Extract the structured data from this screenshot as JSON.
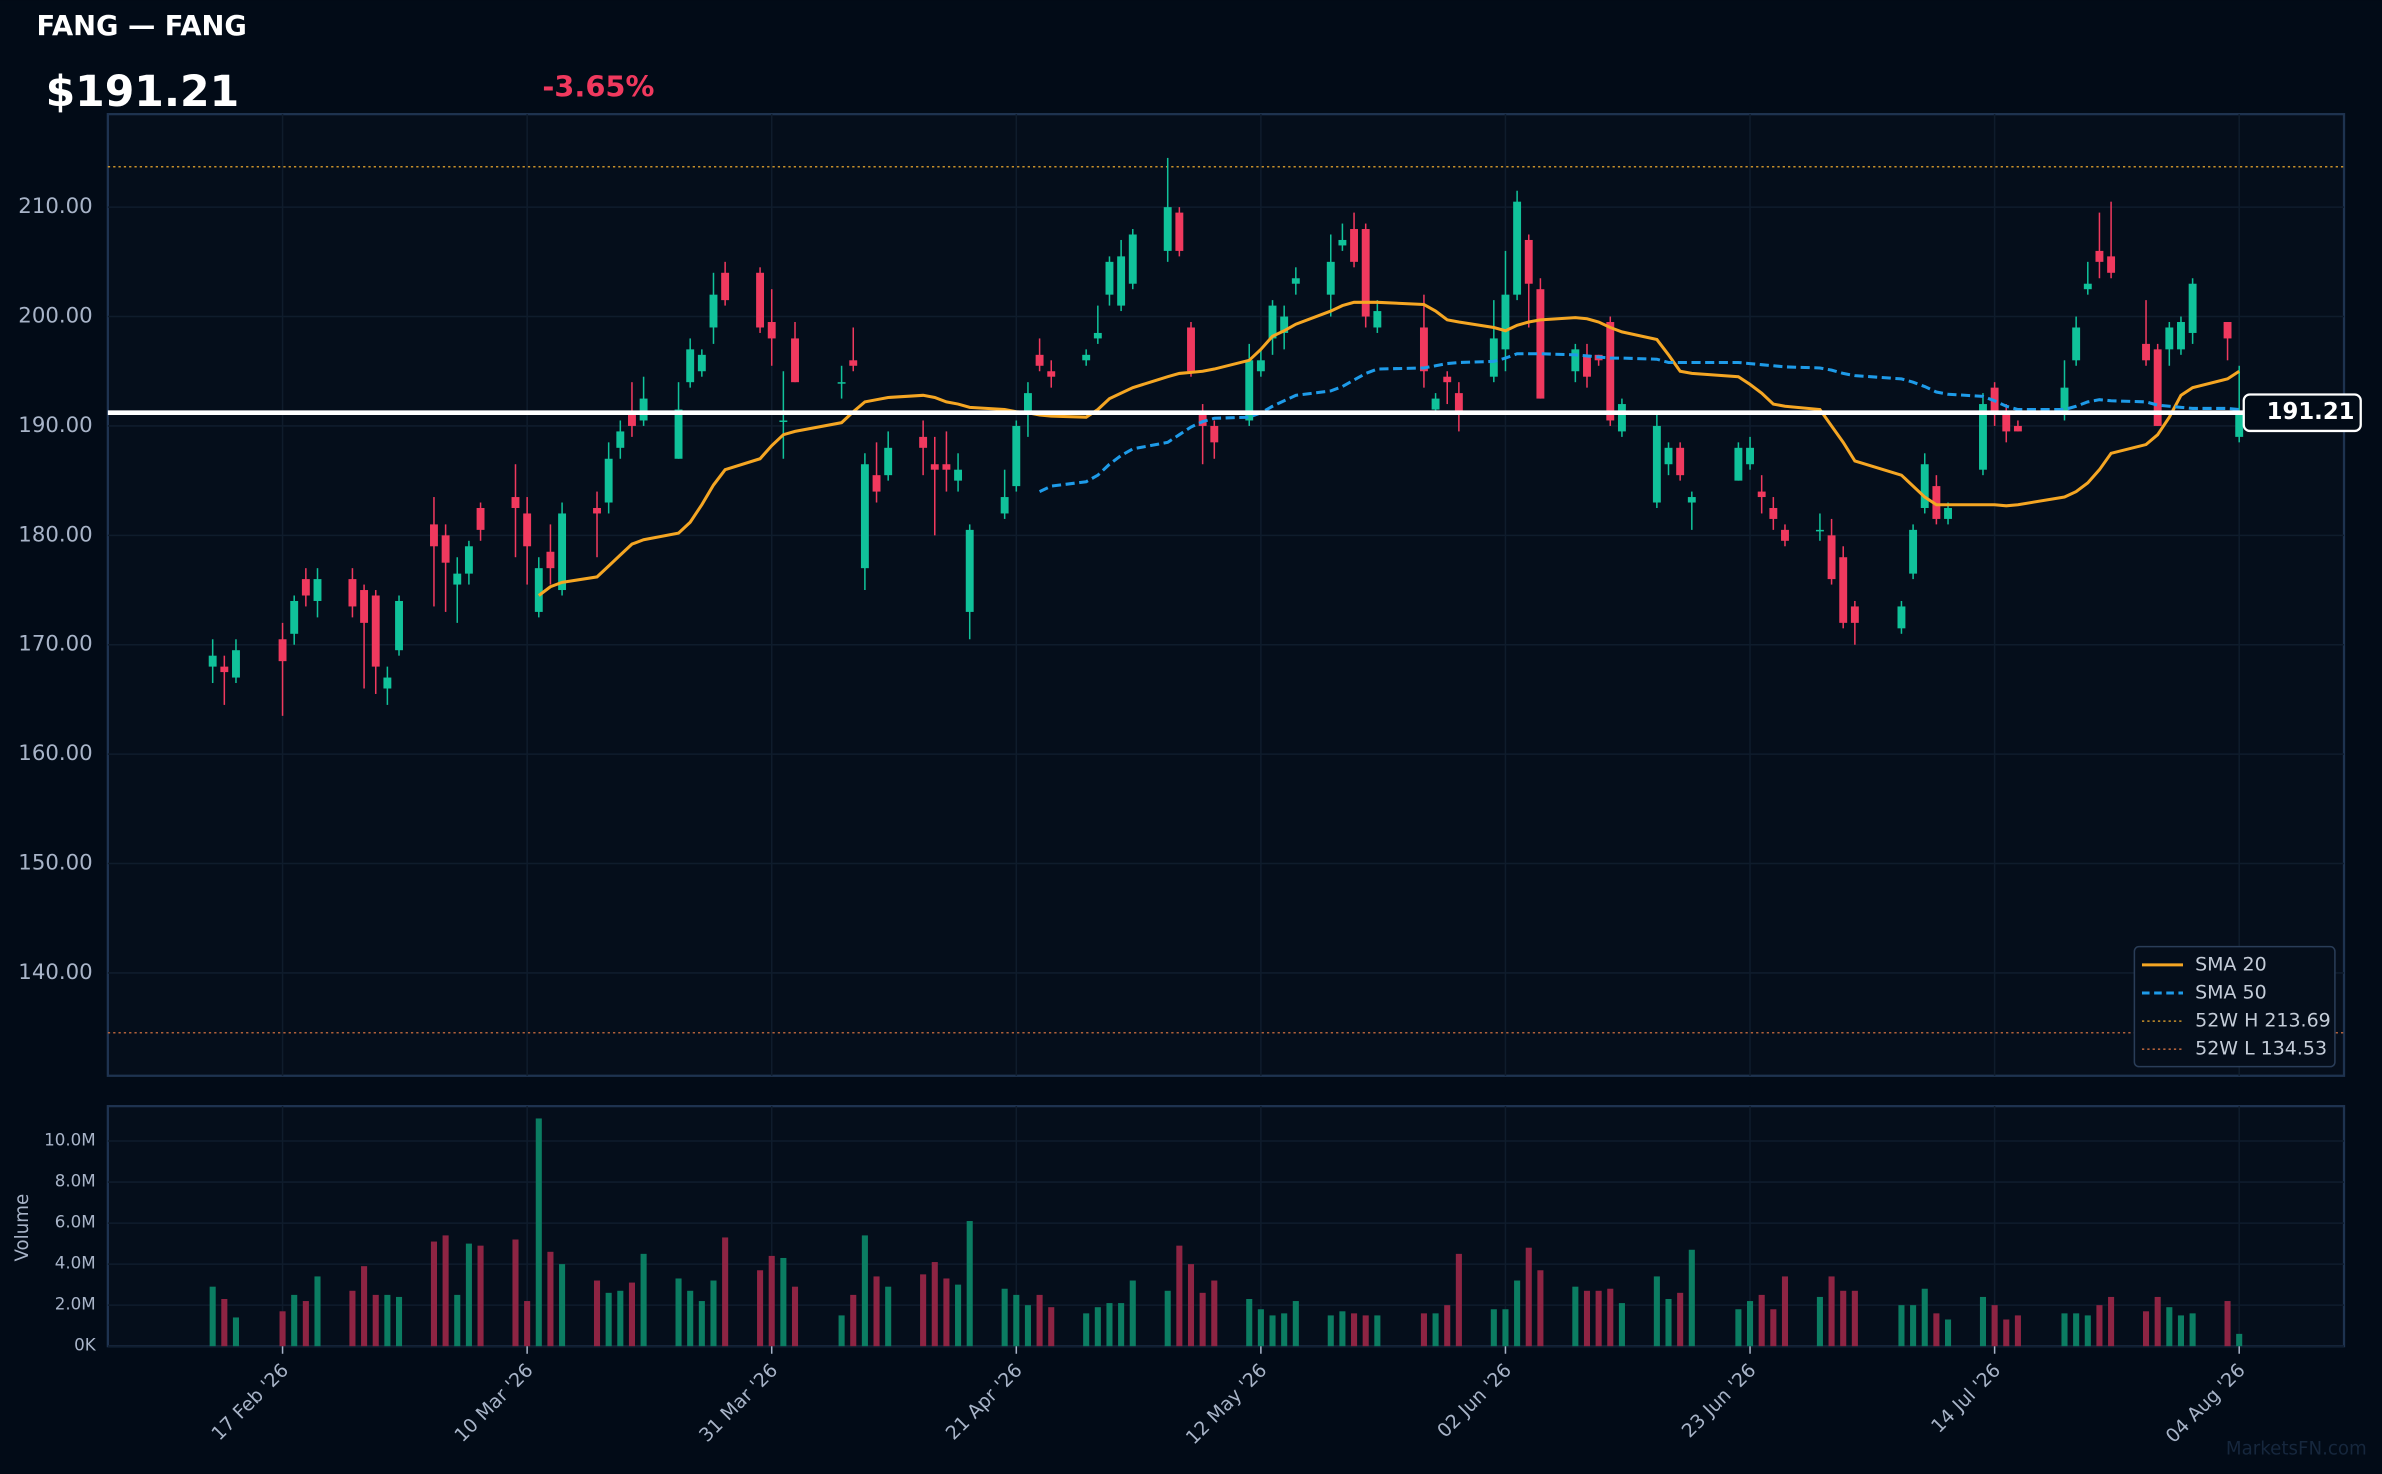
{
  "header": {
    "title": "FANG — FANG",
    "price": "$191.21",
    "change": "-3.65%",
    "watermark": "MarketsFN.com"
  },
  "chart_data": [
    {
      "type": "candlestick",
      "legend": "lower right",
      "grid": true,
      "up_color": "#10c29a",
      "down_color": "#f0395e",
      "xlim": [
        "2026-02-02",
        "2026-08-13"
      ],
      "ylim": [
        130.6,
        218.5
      ],
      "yticks": [
        {
          "value": 140,
          "label": "140.00"
        },
        {
          "value": 150,
          "label": "150.00"
        },
        {
          "value": 160,
          "label": "160.00"
        },
        {
          "value": 170,
          "label": "170.00"
        },
        {
          "value": 180,
          "label": "180.00"
        },
        {
          "value": 190,
          "label": "190.00"
        },
        {
          "value": 200,
          "label": "200.00"
        },
        {
          "value": 210,
          "label": "210.00"
        }
      ],
      "x": [
        "2026-02-11",
        "2026-02-12",
        "2026-02-13",
        "2026-02-17",
        "2026-02-18",
        "2026-02-19",
        "2026-02-20",
        "2026-02-23",
        "2026-02-24",
        "2026-02-25",
        "2026-02-26",
        "2026-02-27",
        "2026-03-02",
        "2026-03-03",
        "2026-03-04",
        "2026-03-05",
        "2026-03-06",
        "2026-03-09",
        "2026-03-10",
        "2026-03-11",
        "2026-03-12",
        "2026-03-13",
        "2026-03-16",
        "2026-03-17",
        "2026-03-18",
        "2026-03-19",
        "2026-03-20",
        "2026-03-23",
        "2026-03-24",
        "2026-03-25",
        "2026-03-26",
        "2026-03-27",
        "2026-03-30",
        "2026-03-31",
        "2026-04-01",
        "2026-04-02",
        "2026-04-06",
        "2026-04-07",
        "2026-04-08",
        "2026-04-09",
        "2026-04-10",
        "2026-04-13",
        "2026-04-14",
        "2026-04-15",
        "2026-04-16",
        "2026-04-17",
        "2026-04-20",
        "2026-04-21",
        "2026-04-22",
        "2026-04-23",
        "2026-04-24",
        "2026-04-27",
        "2026-04-28",
        "2026-04-29",
        "2026-04-30",
        "2026-05-01",
        "2026-05-04",
        "2026-05-05",
        "2026-05-06",
        "2026-05-07",
        "2026-05-08",
        "2026-05-11",
        "2026-05-12",
        "2026-05-13",
        "2026-05-14",
        "2026-05-15",
        "2026-05-18",
        "2026-05-19",
        "2026-05-20",
        "2026-05-21",
        "2026-05-22",
        "2026-05-26",
        "2026-05-27",
        "2026-05-28",
        "2026-05-29",
        "2026-06-01",
        "2026-06-02",
        "2026-06-03",
        "2026-06-04",
        "2026-06-05",
        "2026-06-08",
        "2026-06-09",
        "2026-06-10",
        "2026-06-11",
        "2026-06-12",
        "2026-06-15",
        "2026-06-16",
        "2026-06-17",
        "2026-06-18",
        "2026-06-22",
        "2026-06-23",
        "2026-06-24",
        "2026-06-25",
        "2026-06-26",
        "2026-06-29",
        "2026-06-30",
        "2026-07-01",
        "2026-07-02",
        "2026-07-06",
        "2026-07-07",
        "2026-07-08",
        "2026-07-09",
        "2026-07-10",
        "2026-07-13",
        "2026-07-14",
        "2026-07-15",
        "2026-07-16",
        "2026-07-20",
        "2026-07-21",
        "2026-07-22",
        "2026-07-23",
        "2026-07-24",
        "2026-07-27",
        "2026-07-28",
        "2026-07-29",
        "2026-07-30",
        "2026-07-31",
        "2026-08-03",
        "2026-08-04"
      ],
      "open": [
        168,
        168,
        167,
        170.5,
        171,
        176,
        174,
        176,
        175,
        174.5,
        166,
        169.5,
        181,
        180,
        175.5,
        176.5,
        182.5,
        183.5,
        182,
        173,
        178.5,
        175,
        182.5,
        183,
        188,
        191,
        190.5,
        187,
        194,
        195,
        199,
        204,
        204,
        199.5,
        190.5,
        198,
        194,
        196,
        177,
        185.5,
        185.5,
        189,
        186.5,
        186.5,
        185,
        173,
        182,
        184.5,
        191,
        196.5,
        195,
        196,
        198,
        202,
        201,
        203,
        206,
        209.5,
        199,
        191,
        190,
        190.5,
        195,
        198,
        198.5,
        203,
        202,
        206.5,
        208,
        208,
        199,
        199,
        191.5,
        194.5,
        193,
        194.5,
        197,
        202,
        207,
        202.5,
        195,
        196.5,
        196.5,
        199.5,
        189.5,
        183,
        186.5,
        188,
        183,
        185,
        186.5,
        184,
        182.5,
        180.5,
        180.5,
        180,
        178,
        173.5,
        171.5,
        176.5,
        182.5,
        184.5,
        181.5,
        186,
        193.5,
        191,
        190,
        191,
        196,
        202.5,
        206,
        205.5,
        197.5,
        197,
        197,
        197,
        198.5,
        199.5,
        189
      ],
      "high": [
        170.5,
        169,
        170.5,
        172,
        174.5,
        177,
        177,
        177,
        175.5,
        175,
        168,
        174.5,
        183.5,
        181,
        178,
        179.5,
        183,
        186.5,
        183.5,
        178,
        181,
        183,
        184,
        188.5,
        190.5,
        194,
        194.5,
        194,
        198,
        197,
        204,
        205,
        204.5,
        202.5,
        195,
        199.5,
        195.5,
        199,
        187.5,
        188.5,
        189.5,
        190.5,
        189,
        189.5,
        187.5,
        181,
        186,
        190.5,
        194,
        198,
        196,
        197,
        201,
        205.5,
        207,
        208,
        214.5,
        210,
        199.5,
        192,
        190.5,
        197.5,
        197,
        201.5,
        201,
        204.5,
        207.5,
        208.5,
        209.5,
        208.5,
        201.5,
        202,
        193,
        195,
        194,
        201.5,
        206,
        211.5,
        207.5,
        203.5,
        197.5,
        197.5,
        196.5,
        200,
        192.5,
        191,
        188.5,
        188.5,
        184,
        188.5,
        189,
        185.5,
        183.5,
        181,
        182,
        181.5,
        179,
        174,
        174,
        181,
        187.5,
        185.5,
        183,
        193,
        194,
        192,
        190.5,
        196,
        200,
        205,
        209.5,
        210.5,
        201.5,
        197.5,
        199.5,
        200,
        203.5,
        199.5,
        195.5
      ],
      "low": [
        166.5,
        164.5,
        166.5,
        163.5,
        170,
        173.5,
        172.5,
        172.5,
        166,
        165.5,
        164.5,
        169,
        173.5,
        173,
        172,
        175.5,
        179.5,
        178,
        175.5,
        172.5,
        175.5,
        174.5,
        178,
        182,
        187,
        189,
        190,
        187,
        193.5,
        194.5,
        197.5,
        201,
        198.5,
        195.5,
        187,
        194,
        192.5,
        195,
        175,
        183,
        185,
        185.5,
        180,
        184,
        184,
        170.5,
        181.5,
        184,
        189,
        195,
        193.5,
        195.5,
        197.5,
        201,
        200.5,
        202.5,
        205,
        205.5,
        194.5,
        186.5,
        187,
        190,
        194.5,
        196.5,
        197,
        202,
        200,
        206,
        204.5,
        199,
        198.5,
        193.5,
        191,
        192,
        189.5,
        194,
        195,
        201.5,
        199,
        192.5,
        194,
        193.5,
        195.5,
        190,
        189,
        182.5,
        185.5,
        185,
        180.5,
        185,
        186,
        182,
        180.5,
        179,
        179.5,
        175.5,
        171.5,
        170,
        171,
        176,
        182,
        181,
        181,
        185.5,
        190,
        188.5,
        189.5,
        190.5,
        195.5,
        202,
        203.5,
        203.5,
        195.5,
        190,
        195.5,
        196.5,
        197.5,
        196,
        188.5
      ],
      "close": [
        169,
        167.5,
        169.5,
        168.5,
        174,
        174.5,
        176,
        173.5,
        172,
        168,
        167,
        174,
        179,
        177.5,
        176.5,
        179,
        180.5,
        182.5,
        179,
        177,
        177,
        182,
        182,
        187,
        189.5,
        190,
        192.5,
        191.5,
        197,
        196.5,
        202,
        201.5,
        199,
        198,
        190.5,
        194,
        194,
        195.5,
        186.5,
        184,
        188,
        188,
        186,
        186,
        186,
        180.5,
        183.5,
        190,
        193,
        195.5,
        194.5,
        196.5,
        198.5,
        205,
        205.5,
        207.5,
        210,
        206,
        195,
        190,
        188.5,
        196,
        196,
        201,
        200,
        203.5,
        205,
        207,
        205,
        200,
        200.5,
        195,
        192.5,
        194,
        191,
        198,
        202,
        210.5,
        203,
        192.5,
        197,
        194.5,
        196,
        190.5,
        192,
        190,
        188,
        185.5,
        183.5,
        188,
        188,
        183.5,
        181.5,
        179.5,
        180.5,
        176,
        172,
        172,
        173.5,
        180.5,
        186.5,
        181.5,
        182.5,
        192,
        191,
        189.5,
        189.5,
        193.5,
        199,
        203,
        205,
        204,
        196,
        190,
        199,
        199.5,
        203,
        198,
        191.21
      ],
      "series": [
        {
          "name": "SMA 20",
          "color": "#f5a623",
          "dash": "solid",
          "values": [
            null,
            null,
            null,
            null,
            null,
            null,
            null,
            null,
            null,
            null,
            null,
            null,
            null,
            null,
            null,
            null,
            null,
            null,
            null,
            174.5,
            175.3,
            175.7,
            176.2,
            177.2,
            178.2,
            179.2,
            179.6,
            180.2,
            181.2,
            182.8,
            184.6,
            186.0,
            187.0,
            188.2,
            189.2,
            189.5,
            190.3,
            191.3,
            192.2,
            192.4,
            192.6,
            192.8,
            192.6,
            192.2,
            192.0,
            191.7,
            191.5,
            191.3,
            191.2,
            191.0,
            190.9,
            190.8,
            191.5,
            192.5,
            193.0,
            193.5,
            194.5,
            194.8,
            194.9,
            195.0,
            195.2,
            196.0,
            197.0,
            198.2,
            198.7,
            199.3,
            200.5,
            201.0,
            201.3,
            201.3,
            201.3,
            201.1,
            200.5,
            199.7,
            199.5,
            199.0,
            198.7,
            199.2,
            199.5,
            199.7,
            199.9,
            199.8,
            199.5,
            199.0,
            198.6,
            197.9,
            196.5,
            195.0,
            194.8,
            194.5,
            193.8,
            193.0,
            192.0,
            191.8,
            191.5,
            190.0,
            188.5,
            186.8,
            185.5,
            184.5,
            183.5,
            182.8,
            182.8,
            182.8,
            182.8,
            182.7,
            182.8,
            183.5,
            184.0,
            184.8,
            186.0,
            187.5,
            188.3,
            189.2,
            190.8,
            192.8,
            193.5,
            194.3,
            195.0
          ]
        },
        {
          "name": "SMA 50",
          "color": "#1e9be9",
          "dash": "dashed",
          "values": [
            null,
            null,
            null,
            null,
            null,
            null,
            null,
            null,
            null,
            null,
            null,
            null,
            null,
            null,
            null,
            null,
            null,
            null,
            null,
            null,
            null,
            null,
            null,
            null,
            null,
            null,
            null,
            null,
            null,
            null,
            null,
            null,
            null,
            null,
            null,
            null,
            null,
            null,
            null,
            null,
            null,
            null,
            null,
            null,
            null,
            null,
            null,
            null,
            null,
            184.0,
            184.5,
            184.9,
            185.5,
            186.5,
            187.3,
            187.9,
            188.5,
            189.2,
            189.9,
            190.4,
            190.7,
            190.8,
            191.2,
            191.8,
            192.3,
            192.8,
            193.2,
            193.6,
            194.2,
            194.8,
            195.2,
            195.3,
            195.5,
            195.7,
            195.8,
            195.9,
            196.2,
            196.6,
            196.6,
            196.6,
            196.5,
            196.4,
            196.3,
            196.2,
            196.2,
            196.1,
            195.8,
            195.8,
            195.8,
            195.8,
            195.7,
            195.6,
            195.5,
            195.4,
            195.3,
            195.1,
            194.8,
            194.6,
            194.3,
            194.0,
            193.6,
            193.1,
            192.9,
            192.7,
            192.3,
            191.8,
            191.5,
            191.5,
            191.8,
            192.2,
            192.4,
            192.3,
            192.2,
            191.9,
            191.8,
            191.7,
            191.6,
            191.6,
            191.5
          ]
        }
      ],
      "reference_lines": [
        {
          "name": "52W H 213.69",
          "value": 213.69,
          "color": "#c8902a"
        },
        {
          "name": "52W L 134.53",
          "value": 134.53,
          "color": "#b0603a"
        }
      ],
      "last_price": 191.21
    },
    {
      "type": "bar",
      "y_label": "Volume",
      "up_color": "#0b7d62",
      "down_color": "#8e2443",
      "ylim": [
        0,
        11700000
      ],
      "yticks": [
        {
          "value": 0,
          "label": "0K"
        },
        {
          "value": 2000000,
          "label": "2.0M"
        },
        {
          "value": 4000000,
          "label": "4.0M"
        },
        {
          "value": 6000000,
          "label": "6.0M"
        },
        {
          "value": 8000000,
          "label": "8.0M"
        },
        {
          "value": 10000000,
          "label": "10.0M"
        }
      ],
      "xticks": [
        {
          "value": "2026-02-17",
          "label": "17 Feb '26"
        },
        {
          "value": "2026-03-10",
          "label": "10 Mar '26"
        },
        {
          "value": "2026-03-31",
          "label": "31 Mar '26"
        },
        {
          "value": "2026-04-21",
          "label": "21 Apr '26"
        },
        {
          "value": "2026-05-12",
          "label": "12 May '26"
        },
        {
          "value": "2026-06-02",
          "label": "02 Jun '26"
        },
        {
          "value": "2026-06-23",
          "label": "23 Jun '26"
        },
        {
          "value": "2026-07-14",
          "label": "14 Jul '26"
        },
        {
          "value": "2026-08-04",
          "label": "04 Aug '26"
        }
      ],
      "values": [
        2900000,
        2300000,
        1400000,
        1700000,
        2500000,
        2200000,
        3400000,
        2700000,
        3900000,
        2500000,
        2500000,
        2400000,
        5100000,
        5400000,
        2500000,
        5000000,
        4900000,
        5200000,
        2200000,
        11100000,
        4600000,
        4000000,
        3200000,
        2600000,
        2700000,
        3100000,
        4500000,
        3300000,
        2700000,
        2200000,
        3200000,
        5300000,
        3700000,
        4400000,
        4300000,
        2900000,
        1500000,
        2500000,
        5400000,
        3400000,
        2900000,
        3500000,
        4100000,
        3300000,
        3000000,
        6100000,
        2800000,
        2500000,
        2000000,
        2500000,
        1900000,
        1600000,
        1900000,
        2100000,
        2100000,
        3200000,
        2700000,
        4900000,
        4000000,
        2600000,
        3200000,
        2300000,
        1800000,
        1500000,
        1600000,
        2200000,
        1500000,
        1700000,
        1600000,
        1500000,
        1500000,
        1600000,
        1600000,
        2000000,
        4500000,
        1800000,
        1800000,
        3200000,
        4800000,
        3700000,
        2900000,
        2700000,
        2700000,
        2800000,
        2100000,
        3400000,
        2300000,
        2600000,
        4700000,
        1800000,
        2200000,
        2500000,
        1800000,
        3400000,
        2400000,
        3400000,
        2700000,
        2700000,
        2000000,
        2000000,
        2800000,
        1600000,
        1300000,
        2400000,
        2000000,
        1300000,
        1500000,
        1600000,
        1600000,
        1500000,
        2000000,
        2400000,
        1700000,
        2400000,
        1900000,
        1500000,
        1600000,
        2200000,
        600000
      ]
    }
  ]
}
